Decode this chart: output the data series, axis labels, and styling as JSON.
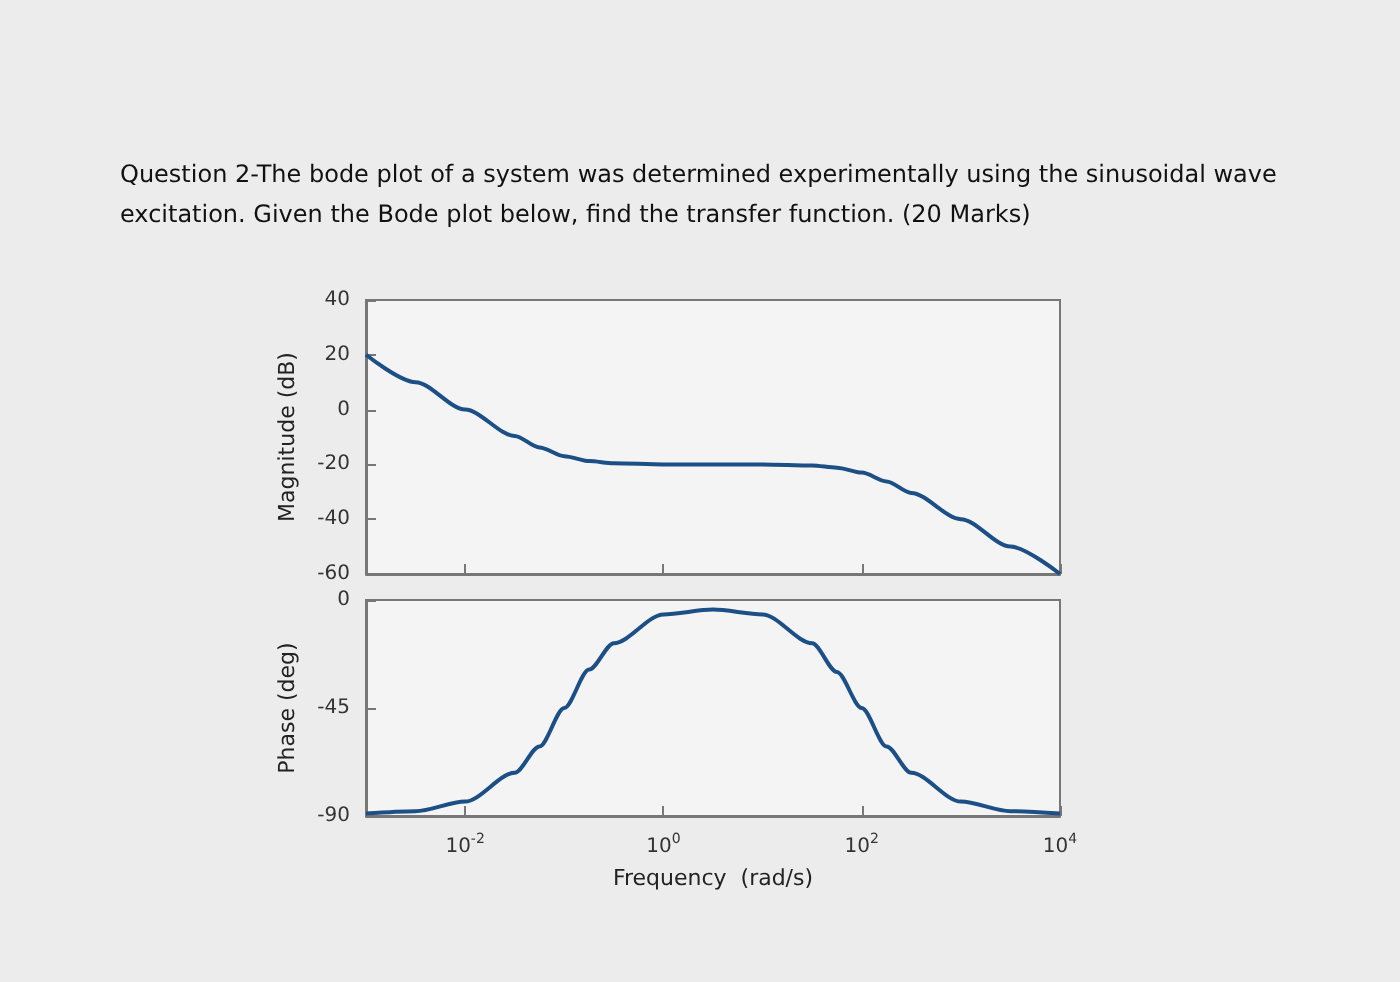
{
  "chart_data": [
    {
      "type": "line",
      "title": "Question 2-The bode plot of a system was determined experimentally using the sinusoidal wave excitation. Given the Bode plot below, find the transfer function. (20 Marks)",
      "ylabel": "Magnitude (dB)",
      "x": [
        0.001,
        0.00316,
        0.01,
        0.0316,
        0.0562,
        0.1,
        0.178,
        0.316,
        1,
        3.16,
        10,
        31.6,
        56.2,
        100,
        178,
        316,
        1000,
        3160,
        10000
      ],
      "series": [
        {
          "color": "#1c4f86",
          "values": [
            20,
            10,
            0,
            -9.6,
            -13.8,
            -17,
            -18.8,
            -19.6,
            -20,
            -20,
            -20,
            -20.4,
            -21.2,
            -23,
            -26.2,
            -30.4,
            -40,
            -50,
            -60
          ]
        }
      ],
      "xlim": [
        0.001,
        10000
      ],
      "xticks": [
        {
          "value": 0.01,
          "label": null
        },
        {
          "value": 1,
          "label": null
        },
        {
          "value": 100,
          "label": null
        },
        {
          "value": 10000,
          "label": null
        }
      ],
      "ylim": [
        -60,
        40
      ],
      "yticks": [
        -60,
        -40,
        -20,
        0,
        20,
        40
      ],
      "log": "x",
      "tick_labels": "y"
    },
    {
      "type": "line",
      "xlabel": "Frequency  (rad/s)",
      "ylabel": "Phase (deg)",
      "x": [
        0.001,
        0.00316,
        0.01,
        0.0316,
        0.0562,
        0.1,
        0.178,
        0.316,
        1,
        3.16,
        10,
        31.6,
        56.2,
        100,
        178,
        316,
        1000,
        3160,
        10000
      ],
      "series": [
        {
          "color": "#1c4f86",
          "values": [
            -89,
            -88,
            -84,
            -72,
            -61,
            -45,
            -29,
            -18,
            -6,
            -4,
            -6,
            -18,
            -30,
            -45,
            -61,
            -72,
            -84,
            -88,
            -89
          ]
        }
      ],
      "xlim": [
        0.001,
        10000
      ],
      "xticks": [
        {
          "value": 0.01,
          "label": "10$^{-2}$"
        },
        {
          "value": 1,
          "label": "10$^{0}$"
        },
        {
          "value": 100,
          "label": "10$^{2}$"
        },
        {
          "value": 10000,
          "label": "10$^{4}$"
        }
      ],
      "ylim": [
        -90,
        0
      ],
      "yticks": [
        -90,
        -45,
        0
      ],
      "log": "x"
    }
  ]
}
